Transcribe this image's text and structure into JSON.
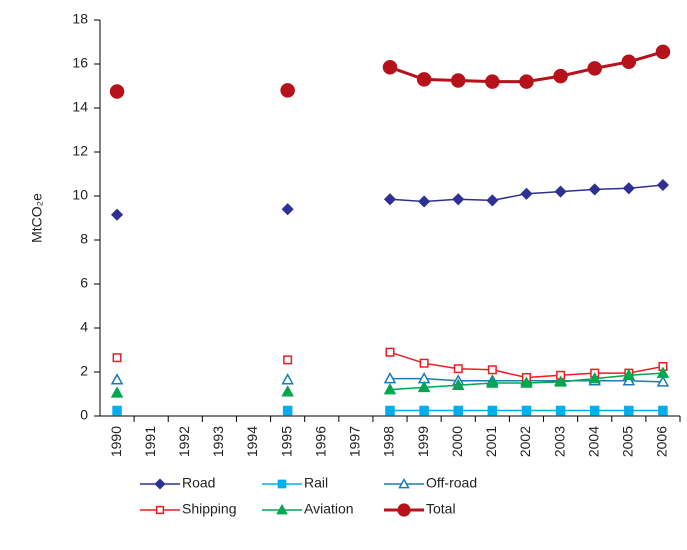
{
  "chart_data": {
    "type": "line",
    "ylabel": "MtCO₂e",
    "categories": [
      "1990",
      "1991",
      "1992",
      "1993",
      "1994",
      "1995",
      "1996",
      "1997",
      "1998",
      "1999",
      "2000",
      "2001",
      "2002",
      "2003",
      "2004",
      "2005",
      "2006"
    ],
    "ylim": [
      0,
      18
    ],
    "yticks": [
      0,
      2,
      4,
      6,
      8,
      10,
      12,
      14,
      16,
      18
    ],
    "grid": false,
    "series": [
      {
        "name": "Road",
        "color": "#2e3192",
        "marker": "diamond",
        "values": [
          9.15,
          null,
          null,
          null,
          null,
          9.4,
          null,
          null,
          9.85,
          9.75,
          9.85,
          9.8,
          10.1,
          10.2,
          10.3,
          10.35,
          10.5
        ]
      },
      {
        "name": "Rail",
        "color": "#00aeef",
        "marker": "square",
        "values": [
          0.25,
          null,
          null,
          null,
          null,
          0.25,
          null,
          null,
          0.25,
          0.25,
          0.25,
          0.25,
          0.25,
          0.25,
          0.25,
          0.25,
          0.25
        ]
      },
      {
        "name": "Off-road",
        "color": "#1a7bb5",
        "marker": "open-triangle",
        "values": [
          1.65,
          null,
          null,
          null,
          null,
          1.65,
          null,
          null,
          1.7,
          1.7,
          1.6,
          1.6,
          1.6,
          1.6,
          1.6,
          1.6,
          1.55
        ]
      },
      {
        "name": "Shipping",
        "color": "#ed1c24",
        "marker": "open-square",
        "values": [
          2.65,
          null,
          null,
          null,
          null,
          2.55,
          null,
          null,
          2.9,
          2.4,
          2.15,
          2.1,
          1.75,
          1.85,
          1.95,
          1.95,
          2.25
        ]
      },
      {
        "name": "Aviation",
        "color": "#00a651",
        "marker": "triangle",
        "values": [
          1.05,
          null,
          null,
          null,
          null,
          1.1,
          null,
          null,
          1.2,
          1.3,
          1.4,
          1.5,
          1.5,
          1.55,
          1.7,
          1.85,
          1.95
        ]
      },
      {
        "name": "Total",
        "color": "#b5121b",
        "marker": "circle",
        "values": [
          14.75,
          null,
          null,
          null,
          null,
          14.8,
          null,
          null,
          15.85,
          15.3,
          15.25,
          15.2,
          15.2,
          15.45,
          15.8,
          16.1,
          16.55
        ]
      }
    ]
  }
}
